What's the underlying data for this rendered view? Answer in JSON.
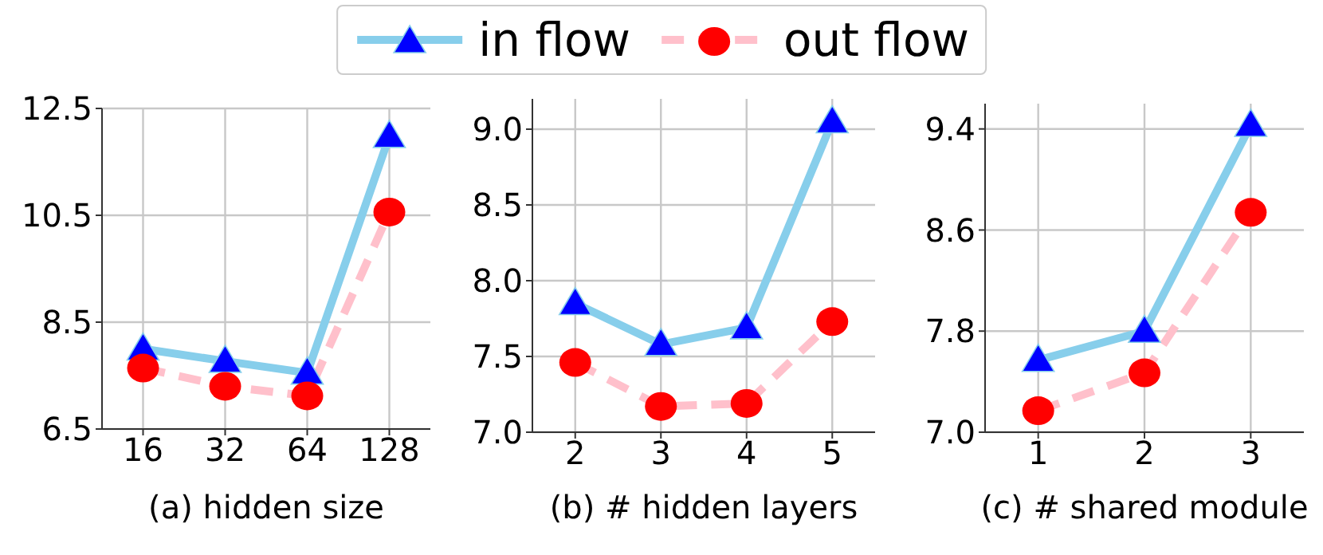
{
  "chart_data": [
    {
      "type": "line",
      "xlabel": "(a) hidden size",
      "categories": [
        "16",
        "32",
        "64",
        "128"
      ],
      "ylim": [
        6.5,
        12.5
      ],
      "yticks": [
        6.5,
        8.5,
        10.5,
        12.5
      ],
      "grid": true,
      "legend": "top",
      "series": [
        {
          "name": "in flow",
          "color": "#87ceeb",
          "colors": [
            "#0000ff",
            "#0000ff",
            "#0000ff",
            "#0000ff"
          ],
          "marker": "triangle",
          "line_style": "solid",
          "values": [
            8.0,
            7.77,
            7.55,
            11.98
          ]
        },
        {
          "name": "out flow",
          "color": "#ffc0cb",
          "colors": [
            "#ff0000",
            "#ff0000",
            "#ff0000",
            "#ff0000"
          ],
          "marker": "circle",
          "line_style": "dashed",
          "values": [
            7.64,
            7.3,
            7.12,
            10.56
          ]
        }
      ]
    },
    {
      "type": "line",
      "xlabel": "(b) # hidden layers",
      "categories": [
        "2",
        "3",
        "4",
        "5"
      ],
      "ylim": [
        7.0,
        9.2
      ],
      "yticks": [
        {
          "value": 7.0,
          "label": "7.0"
        },
        7.5,
        {
          "value": 8.0,
          "label": "8.0"
        },
        8.5,
        {
          "value": 9.0,
          "label": "9.0"
        }
      ],
      "grid": true,
      "series": [
        {
          "color": "#87ceeb",
          "colors": [
            "#0000ff",
            "#0000ff",
            "#0000ff",
            "#0000ff"
          ],
          "marker": "triangle",
          "line_style": "solid",
          "values": [
            7.85,
            7.58,
            7.69,
            9.05
          ]
        },
        {
          "color": "#ffc0cb",
          "colors": [
            "#ff0000",
            "#ff0000",
            "#ff0000",
            "#ff0000"
          ],
          "marker": "circle",
          "line_style": "dashed",
          "values": [
            7.46,
            7.17,
            7.19,
            7.73
          ]
        }
      ]
    },
    {
      "type": "line",
      "xlabel": "(c) # shared module",
      "categories": [
        "1",
        "2",
        "3"
      ],
      "ylim": [
        7.0,
        9.6
      ],
      "yticks": [
        {
          "value": 7.0,
          "label": "7.0"
        },
        7.8,
        8.6,
        9.4
      ],
      "grid": true,
      "series": [
        {
          "color": "#87ceeb",
          "colors": [
            "#0000ff",
            "#0000ff",
            "#0000ff"
          ],
          "marker": "triangle",
          "line_style": "solid",
          "values": [
            7.57,
            7.8,
            9.43
          ]
        },
        {
          "color": "#ffc0cb",
          "colors": [
            "#ff0000",
            "#ff0000",
            "#ff0000"
          ],
          "marker": "circle",
          "line_style": "dashed",
          "values": [
            7.17,
            7.47,
            8.74
          ]
        }
      ]
    }
  ]
}
